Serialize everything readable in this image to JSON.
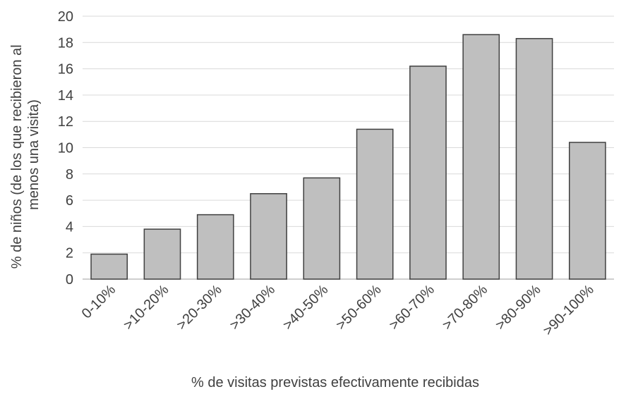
{
  "chart_data": {
    "type": "bar",
    "title": "",
    "xlabel": "% de visitas previstas efectivamente recibidas",
    "ylabel_lines": [
      "% de niños (de los que recibieron al",
      "menos una visita)"
    ],
    "categories": [
      "0-10%",
      ">10-20%",
      ">20-30%",
      ">30-40%",
      ">40-50%",
      ">50-60%",
      ">60-70%",
      ">70-80%",
      ">80-90%",
      ">90-100%"
    ],
    "values": [
      1.9,
      3.8,
      4.9,
      6.5,
      7.7,
      11.4,
      16.2,
      18.6,
      18.3,
      10.4
    ],
    "ylim": [
      0,
      20
    ],
    "yticks": [
      0,
      2,
      4,
      6,
      8,
      10,
      12,
      14,
      16,
      18,
      20
    ],
    "grid": true,
    "legend": "none",
    "bar_color": "#bfbfbf",
    "bar_edge_color": "#404040",
    "grid_color": "#d9d9d9",
    "axis_color": "#bfbfbf"
  }
}
